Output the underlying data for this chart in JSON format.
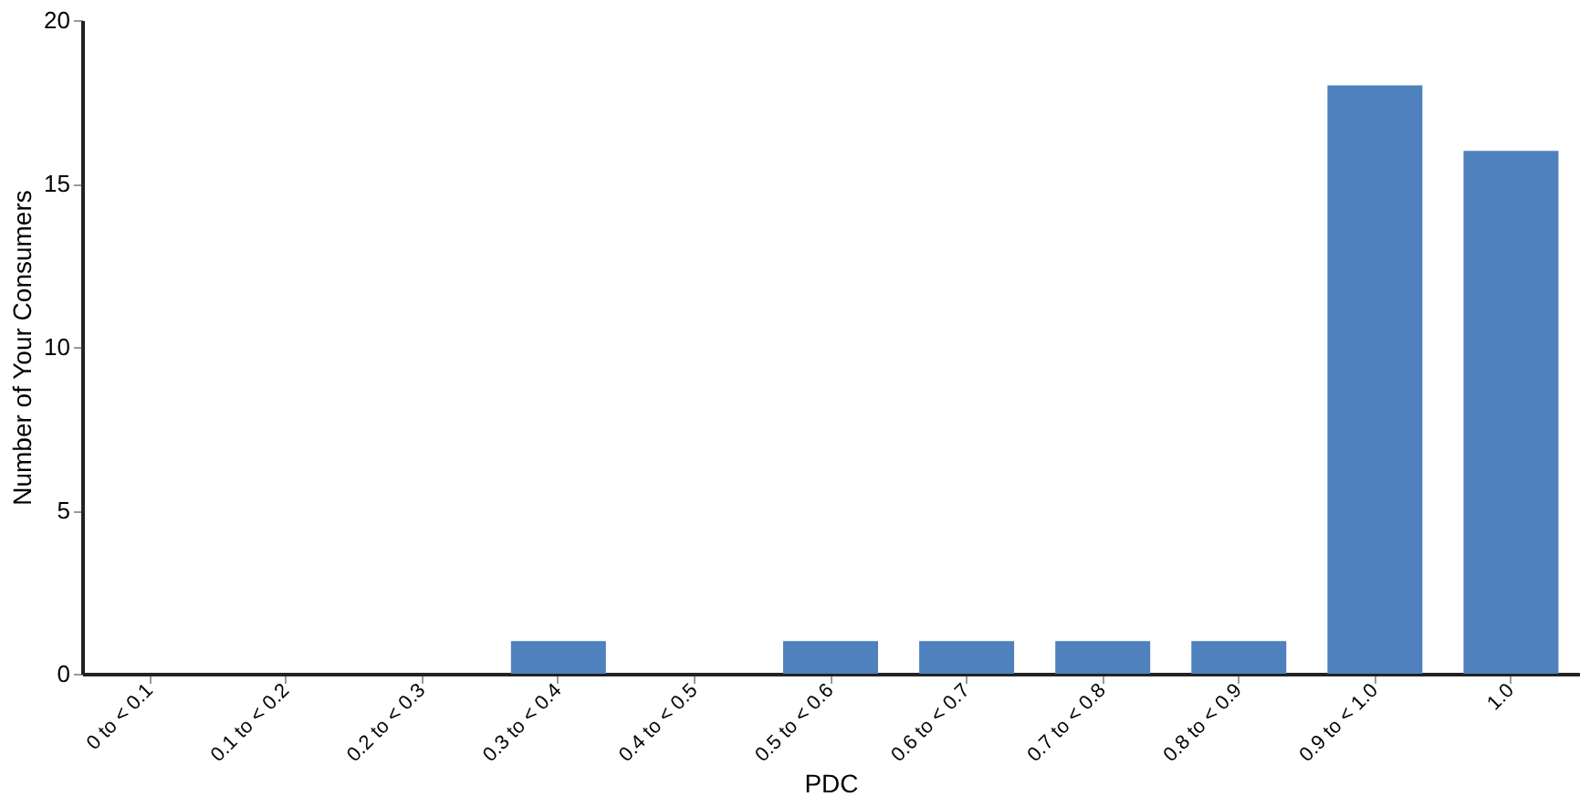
{
  "chart_data": {
    "type": "bar",
    "xlabel": "PDC",
    "ylabel": "Number of Your Consumers",
    "categories": [
      "0 to < 0.1",
      "0.1 to < 0.2",
      "0.2 to < 0.3",
      "0.3 to < 0.4",
      "0.4 to < 0.5",
      "0.5 to < 0.6",
      "0.6 to < 0.7",
      "0.7 to < 0.8",
      "0.8 to < 0.9",
      "0.9 to < 1.0",
      "1.0"
    ],
    "values": [
      0,
      0,
      0,
      1,
      0,
      1,
      1,
      1,
      1,
      18,
      16
    ],
    "color": "#4e81bd",
    "ylim": [
      0,
      20
    ],
    "yticks": [
      0,
      5,
      10,
      15,
      20
    ],
    "grid": false
  }
}
